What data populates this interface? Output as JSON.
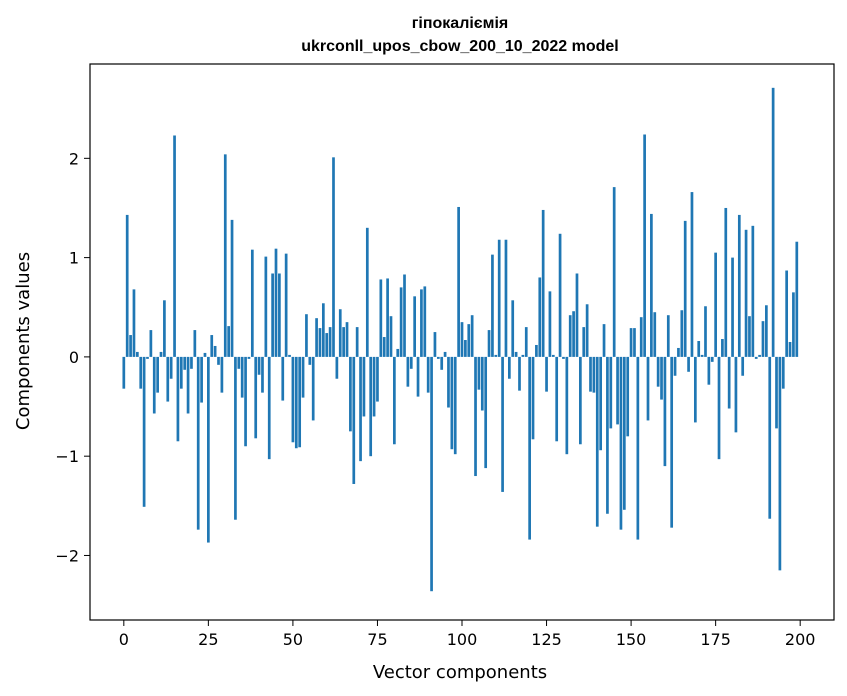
{
  "chart_data": {
    "type": "bar",
    "title": "гіпокаліємія",
    "subtitle": "ukrconll_upos_cbow_200_10_2022 model",
    "xlabel": "Vector components",
    "ylabel": "Components values",
    "xlim": [
      -10,
      210
    ],
    "ylim": [
      -2.65,
      2.95
    ],
    "xticks": [
      0,
      25,
      50,
      75,
      100,
      125,
      150,
      175,
      200
    ],
    "yticks": [
      -2,
      -1,
      0,
      1,
      2
    ],
    "ytick_labels": [
      "−2",
      "−1",
      "0",
      "1",
      "2"
    ],
    "grid": false,
    "bar_color": "#1f77b4",
    "values": [
      -0.32,
      1.43,
      0.22,
      0.68,
      0.05,
      -0.32,
      -1.51,
      -0.02,
      0.27,
      -0.57,
      -0.36,
      0.05,
      0.57,
      -0.45,
      -0.22,
      2.23,
      -0.85,
      -0.32,
      -0.13,
      -0.57,
      -0.12,
      0.27,
      -1.74,
      -0.46,
      0.04,
      -1.87,
      0.22,
      0.11,
      -0.08,
      -0.36,
      2.04,
      0.31,
      1.38,
      -1.64,
      -0.12,
      -0.41,
      -0.9,
      -0.02,
      1.08,
      -0.82,
      -0.18,
      -0.36,
      1.01,
      -1.03,
      0.84,
      1.09,
      0.84,
      -0.44,
      1.04,
      0.02,
      -0.86,
      -0.92,
      -0.91,
      -0.41,
      0.43,
      -0.08,
      -0.64,
      0.39,
      0.29,
      0.54,
      0.24,
      0.3,
      2.01,
      -0.22,
      0.48,
      0.3,
      0.35,
      -0.75,
      -1.28,
      0.3,
      -1.05,
      -0.6,
      1.3,
      -1.0,
      -0.6,
      -0.45,
      0.78,
      0.2,
      0.79,
      0.41,
      -0.88,
      0.08,
      0.7,
      0.83,
      -0.3,
      -0.12,
      0.61,
      -0.4,
      0.68,
      0.71,
      -0.36,
      -2.36,
      0.25,
      -0.02,
      -0.13,
      0.05,
      -0.51,
      -0.93,
      -0.98,
      1.51,
      0.35,
      0.17,
      0.33,
      0.42,
      -1.2,
      -0.33,
      -0.54,
      -1.12,
      0.27,
      1.03,
      0.02,
      1.18,
      -1.36,
      1.18,
      -0.22,
      0.57,
      0.05,
      -0.34,
      0.02,
      0.3,
      -1.84,
      -0.83,
      0.12,
      0.8,
      1.48,
      -0.35,
      0.66,
      0.02,
      -0.85,
      1.24,
      -0.02,
      -0.98,
      0.42,
      0.46,
      0.84,
      -0.88,
      0.3,
      0.53,
      -0.35,
      -0.36,
      -1.71,
      -0.94,
      0.33,
      -1.58,
      -0.72,
      1.71,
      -0.68,
      -1.74,
      -1.54,
      -0.8,
      0.29,
      0.29,
      -1.84,
      0.4,
      2.24,
      -0.64,
      1.44,
      0.45,
      -0.3,
      -0.43,
      -1.1,
      0.42,
      -1.72,
      -0.19,
      0.09,
      0.47,
      1.37,
      -0.15,
      1.66,
      -0.66,
      0.16,
      0.02,
      0.51,
      -0.28,
      -0.05,
      1.05,
      -1.03,
      0.18,
      1.5,
      -0.52,
      1.0,
      -0.76,
      1.43,
      -0.19,
      1.28,
      0.41,
      1.32,
      -0.02,
      0.02,
      0.36,
      0.52,
      -1.63,
      2.71,
      -0.72,
      -2.15,
      -0.32,
      0.87,
      0.15,
      0.65,
      1.16
    ]
  }
}
